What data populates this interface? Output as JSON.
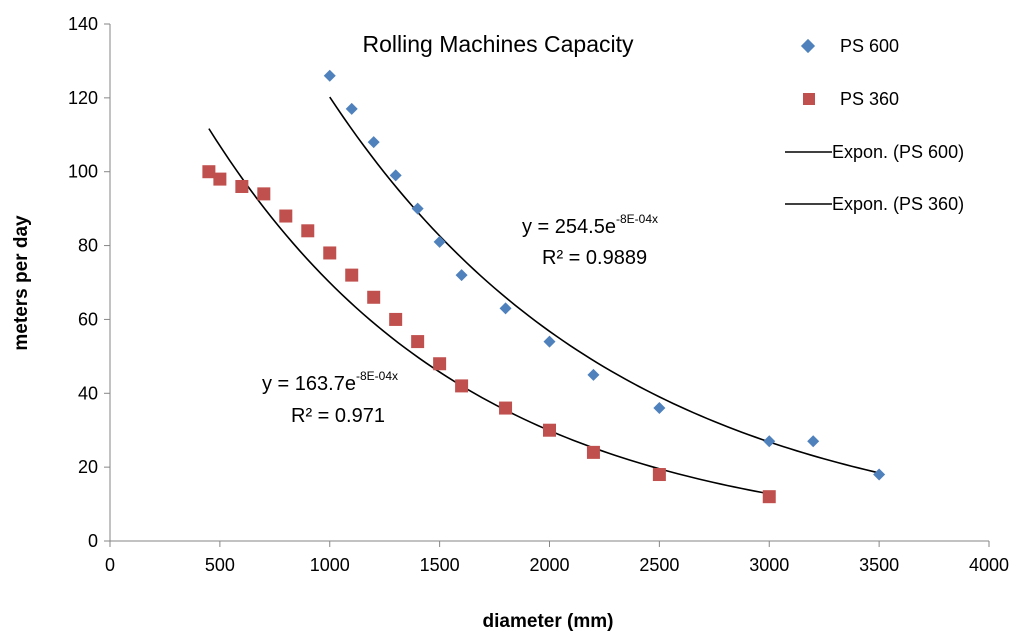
{
  "chart_data": {
    "type": "scatter",
    "title": "Rolling Machines Capacity",
    "xlabel": "diameter (mm)",
    "ylabel": "meters per day",
    "xlim": [
      0,
      4000
    ],
    "ylim": [
      0,
      140
    ],
    "xticks": [
      "0",
      "500",
      "1000",
      "1500",
      "2000",
      "2500",
      "3000",
      "3500",
      "4000"
    ],
    "yticks": [
      "0",
      "20",
      "40",
      "60",
      "80",
      "100",
      "120",
      "140"
    ],
    "grid": false,
    "legend_position": "right",
    "series": [
      {
        "name": "PS 600",
        "marker": "diamond",
        "color": "#4F81BD",
        "points": [
          [
            1000,
            126
          ],
          [
            1100,
            117
          ],
          [
            1200,
            108
          ],
          [
            1300,
            99
          ],
          [
            1400,
            90
          ],
          [
            1500,
            81
          ],
          [
            1600,
            72
          ],
          [
            1800,
            63
          ],
          [
            2000,
            54
          ],
          [
            2200,
            45
          ],
          [
            2500,
            36
          ],
          [
            3000,
            27
          ],
          [
            3200,
            27
          ],
          [
            3500,
            18
          ]
        ]
      },
      {
        "name": "PS 360",
        "marker": "square",
        "color": "#C0504D",
        "points": [
          [
            450,
            100
          ],
          [
            500,
            98
          ],
          [
            600,
            96
          ],
          [
            700,
            94
          ],
          [
            800,
            88
          ],
          [
            900,
            84
          ],
          [
            1000,
            78
          ],
          [
            1100,
            72
          ],
          [
            1200,
            66
          ],
          [
            1300,
            60
          ],
          [
            1400,
            54
          ],
          [
            1500,
            48
          ],
          [
            1600,
            42
          ],
          [
            1800,
            36
          ],
          [
            2000,
            30
          ],
          [
            2200,
            24
          ],
          [
            2500,
            18
          ],
          [
            3000,
            12
          ]
        ]
      }
    ],
    "trendlines": [
      {
        "name": "Expon. (PS 600)",
        "type": "exponential",
        "color": "#000000",
        "a": 254.5,
        "b": -0.00075,
        "x_range": [
          1000,
          3500
        ],
        "equation_base": "y = 254.5e",
        "equation_exponent": "-8E-04x",
        "r_squared": "R² = 0.9889"
      },
      {
        "name": "Expon. (PS 360)",
        "type": "exponential",
        "color": "#000000",
        "a": 163.7,
        "b": -0.00085,
        "x_range": [
          450,
          3000
        ],
        "equation_base": "y = 163.7e",
        "equation_exponent": "-8E-04x",
        "r_squared": "R² = 0.971"
      }
    ]
  }
}
